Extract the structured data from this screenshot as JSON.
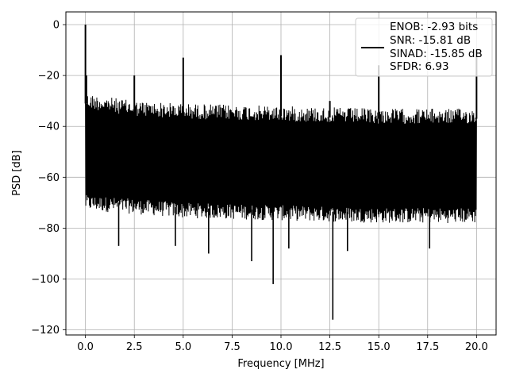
{
  "chart_data": {
    "type": "line",
    "title": "",
    "xlabel": "Frequency [MHz]",
    "ylabel": "PSD [dB]",
    "xlim": [
      -1.0,
      21.0
    ],
    "ylim": [
      -122,
      5
    ],
    "xticks": [
      0.0,
      2.5,
      5.0,
      7.5,
      10.0,
      12.5,
      15.0,
      17.5,
      20.0
    ],
    "xtick_labels": [
      "0.0",
      "2.5",
      "5.0",
      "7.5",
      "10.0",
      "12.5",
      "15.0",
      "17.5",
      "20.0"
    ],
    "yticks": [
      0,
      -20,
      -40,
      -60,
      -80,
      -100,
      -120
    ],
    "ytick_labels": [
      "0",
      "−20",
      "−40",
      "−60",
      "−80",
      "−100",
      "−120"
    ],
    "grid": true,
    "legend_position": "top-right",
    "color": "#000000",
    "legend_lines": [
      "ENOB: -2.93 bits",
      "SNR: -15.81 dB",
      "SINAD: -15.85 dB",
      "SFDR: 6.93"
    ],
    "noise": {
      "x_range": [
        0.0,
        20.0
      ],
      "upper_envelope": [
        [
          0.0,
          -27
        ],
        [
          2.5,
          -30
        ],
        [
          5.0,
          -31
        ],
        [
          10.0,
          -32
        ],
        [
          15.0,
          -33
        ],
        [
          20.0,
          -33
        ]
      ],
      "lower_envelope": [
        [
          0.0,
          -73
        ],
        [
          5.0,
          -76
        ],
        [
          10.0,
          -77
        ],
        [
          15.0,
          -78
        ],
        [
          20.0,
          -78
        ]
      ]
    },
    "spikes": [
      {
        "x": 0.0,
        "y": 0
      },
      {
        "x": 0.05,
        "y": -20
      },
      {
        "x": 2.5,
        "y": -20
      },
      {
        "x": 5.0,
        "y": -13
      },
      {
        "x": 10.0,
        "y": -12
      },
      {
        "x": 12.5,
        "y": -30
      },
      {
        "x": 15.0,
        "y": -16
      },
      {
        "x": 20.0,
        "y": -10
      }
    ],
    "dips": [
      {
        "x": 1.7,
        "y": -87
      },
      {
        "x": 4.6,
        "y": -87
      },
      {
        "x": 6.3,
        "y": -90
      },
      {
        "x": 8.5,
        "y": -93
      },
      {
        "x": 9.6,
        "y": -102
      },
      {
        "x": 10.4,
        "y": -88
      },
      {
        "x": 12.65,
        "y": -116
      },
      {
        "x": 13.4,
        "y": -89
      },
      {
        "x": 17.6,
        "y": -88
      }
    ]
  }
}
